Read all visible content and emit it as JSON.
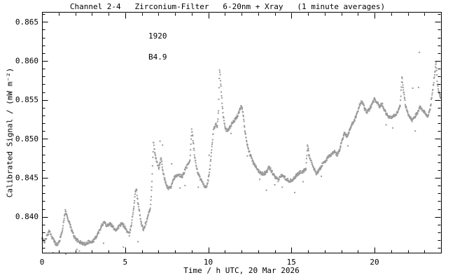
{
  "chart_data": {
    "type": "scatter",
    "title": "Channel 2-4   Zirconium-Filter   6-20nm + Xray   (1 minute averages)",
    "xlabel": "Time / h UTC, 20 Mar 2026",
    "ylabel": "Calibrated Signal / (mW m⁻²)",
    "annotation": {
      "time": "1920",
      "flare_class": "B4.9"
    },
    "xlim": [
      0,
      24
    ],
    "ylim": [
      0.8353,
      0.8662
    ],
    "x_major_ticks": [
      0,
      5,
      10,
      15,
      20
    ],
    "x_tick_labels": [
      "0",
      "5",
      "10",
      "15",
      "20"
    ],
    "x_minor_step_hours": 1,
    "y_major_ticks": [
      0.84,
      0.845,
      0.85,
      0.855,
      0.86,
      0.865
    ],
    "y_tick_labels": [
      "0.840",
      "0.845",
      "0.850",
      "0.855",
      "0.860",
      "0.865"
    ],
    "y_minor_step": 0.001,
    "grid": false,
    "point_color": "#999999",
    "axis_color": "#000000",
    "background_color": "#ffffff",
    "series": [
      {
        "name": "calibrated-signal",
        "cadence_minutes": 1,
        "keypoints": [
          [
            0.0,
            0.8372
          ],
          [
            0.15,
            0.8368
          ],
          [
            0.3,
            0.8375
          ],
          [
            0.45,
            0.8382
          ],
          [
            0.6,
            0.8374
          ],
          [
            0.8,
            0.8366
          ],
          [
            0.95,
            0.8364
          ],
          [
            1.1,
            0.8372
          ],
          [
            1.25,
            0.8386
          ],
          [
            1.4,
            0.8408
          ],
          [
            1.52,
            0.84
          ],
          [
            1.65,
            0.8392
          ],
          [
            1.8,
            0.8382
          ],
          [
            1.95,
            0.8374
          ],
          [
            2.15,
            0.8369
          ],
          [
            2.4,
            0.8366
          ],
          [
            2.6,
            0.8365
          ],
          [
            2.8,
            0.8368
          ],
          [
            3.0,
            0.8367
          ],
          [
            3.2,
            0.8372
          ],
          [
            3.4,
            0.838
          ],
          [
            3.6,
            0.839
          ],
          [
            3.75,
            0.8393
          ],
          [
            3.9,
            0.8389
          ],
          [
            4.1,
            0.8391
          ],
          [
            4.3,
            0.8386
          ],
          [
            4.45,
            0.8383
          ],
          [
            4.6,
            0.8387
          ],
          [
            4.8,
            0.8391
          ],
          [
            4.95,
            0.8388
          ],
          [
            5.1,
            0.8382
          ],
          [
            5.25,
            0.8377
          ],
          [
            5.4,
            0.8393
          ],
          [
            5.52,
            0.8412
          ],
          [
            5.62,
            0.8432
          ],
          [
            5.68,
            0.8437
          ],
          [
            5.75,
            0.8421
          ],
          [
            5.85,
            0.8408
          ],
          [
            5.95,
            0.8394
          ],
          [
            6.1,
            0.8383
          ],
          [
            6.25,
            0.8392
          ],
          [
            6.4,
            0.8402
          ],
          [
            6.52,
            0.8412
          ],
          [
            6.62,
            0.8445
          ],
          [
            6.7,
            0.8496
          ],
          [
            6.78,
            0.8483
          ],
          [
            6.9,
            0.847
          ],
          [
            7.05,
            0.8462
          ],
          [
            7.15,
            0.8476
          ],
          [
            7.3,
            0.8455
          ],
          [
            7.45,
            0.8442
          ],
          [
            7.6,
            0.8436
          ],
          [
            7.75,
            0.8438
          ],
          [
            7.9,
            0.8449
          ],
          [
            8.05,
            0.8452
          ],
          [
            8.25,
            0.8453
          ],
          [
            8.45,
            0.8452
          ],
          [
            8.6,
            0.846
          ],
          [
            8.75,
            0.8466
          ],
          [
            8.9,
            0.8471
          ],
          [
            9.0,
            0.8512
          ],
          [
            9.08,
            0.85
          ],
          [
            9.2,
            0.8474
          ],
          [
            9.35,
            0.8458
          ],
          [
            9.5,
            0.845
          ],
          [
            9.65,
            0.8444
          ],
          [
            9.8,
            0.8438
          ],
          [
            9.95,
            0.8441
          ],
          [
            10.1,
            0.8462
          ],
          [
            10.22,
            0.849
          ],
          [
            10.32,
            0.8512
          ],
          [
            10.45,
            0.8519
          ],
          [
            10.55,
            0.8516
          ],
          [
            10.62,
            0.8538
          ],
          [
            10.68,
            0.859
          ],
          [
            10.75,
            0.8572
          ],
          [
            10.82,
            0.8551
          ],
          [
            10.9,
            0.853
          ],
          [
            11.0,
            0.8515
          ],
          [
            11.1,
            0.8511
          ],
          [
            11.25,
            0.8512
          ],
          [
            11.4,
            0.8519
          ],
          [
            11.6,
            0.8524
          ],
          [
            11.75,
            0.8529
          ],
          [
            11.88,
            0.8536
          ],
          [
            11.97,
            0.8543
          ],
          [
            12.08,
            0.8536
          ],
          [
            12.2,
            0.8512
          ],
          [
            12.32,
            0.8495
          ],
          [
            12.5,
            0.8481
          ],
          [
            12.7,
            0.847
          ],
          [
            12.9,
            0.8462
          ],
          [
            13.1,
            0.8457
          ],
          [
            13.3,
            0.8455
          ],
          [
            13.5,
            0.8457
          ],
          [
            13.65,
            0.8463
          ],
          [
            13.8,
            0.8459
          ],
          [
            14.0,
            0.8451
          ],
          [
            14.2,
            0.8447
          ],
          [
            14.35,
            0.8452
          ],
          [
            14.5,
            0.8454
          ],
          [
            14.7,
            0.8448
          ],
          [
            14.9,
            0.8446
          ],
          [
            15.1,
            0.8448
          ],
          [
            15.3,
            0.8453
          ],
          [
            15.5,
            0.8457
          ],
          [
            15.7,
            0.8458
          ],
          [
            15.88,
            0.8461
          ],
          [
            15.97,
            0.8492
          ],
          [
            16.07,
            0.8479
          ],
          [
            16.2,
            0.8471
          ],
          [
            16.35,
            0.8462
          ],
          [
            16.5,
            0.8456
          ],
          [
            16.65,
            0.8459
          ],
          [
            16.85,
            0.8467
          ],
          [
            17.05,
            0.8472
          ],
          [
            17.25,
            0.8477
          ],
          [
            17.45,
            0.8481
          ],
          [
            17.6,
            0.8484
          ],
          [
            17.75,
            0.8479
          ],
          [
            17.9,
            0.8486
          ],
          [
            18.05,
            0.8498
          ],
          [
            18.2,
            0.8508
          ],
          [
            18.35,
            0.8503
          ],
          [
            18.5,
            0.8511
          ],
          [
            18.65,
            0.8519
          ],
          [
            18.8,
            0.8524
          ],
          [
            18.95,
            0.8532
          ],
          [
            19.1,
            0.8544
          ],
          [
            19.25,
            0.8548
          ],
          [
            19.4,
            0.8539
          ],
          [
            19.55,
            0.8534
          ],
          [
            19.7,
            0.8538
          ],
          [
            19.85,
            0.8545
          ],
          [
            20.0,
            0.8551
          ],
          [
            20.15,
            0.8547
          ],
          [
            20.3,
            0.8541
          ],
          [
            20.45,
            0.8545
          ],
          [
            20.6,
            0.8537
          ],
          [
            20.75,
            0.8531
          ],
          [
            20.95,
            0.8527
          ],
          [
            21.15,
            0.8529
          ],
          [
            21.35,
            0.8533
          ],
          [
            21.55,
            0.8543
          ],
          [
            21.65,
            0.858
          ],
          [
            21.75,
            0.8561
          ],
          [
            21.88,
            0.8541
          ],
          [
            22.05,
            0.8531
          ],
          [
            22.25,
            0.8523
          ],
          [
            22.4,
            0.8527
          ],
          [
            22.55,
            0.8533
          ],
          [
            22.75,
            0.8541
          ],
          [
            22.9,
            0.8537
          ],
          [
            23.05,
            0.8533
          ],
          [
            23.2,
            0.8528
          ],
          [
            23.35,
            0.8539
          ],
          [
            23.5,
            0.8561
          ],
          [
            23.62,
            0.8584
          ],
          [
            23.7,
            0.8597
          ],
          [
            23.78,
            0.8571
          ],
          [
            23.88,
            0.8559
          ],
          [
            24.0,
            0.8552
          ]
        ]
      }
    ],
    "outliers": [
      [
        0.67,
        0.8354
      ],
      [
        1.43,
        0.8352
      ],
      [
        2.1,
        0.8358
      ],
      [
        2.25,
        0.8356
      ],
      [
        3.7,
        0.8366
      ],
      [
        4.9,
        0.8361
      ],
      [
        5.77,
        0.8368
      ],
      [
        7.1,
        0.8497
      ],
      [
        7.25,
        0.8492
      ],
      [
        7.8,
        0.8468
      ],
      [
        8.3,
        0.8437
      ],
      [
        8.6,
        0.844
      ],
      [
        9.4,
        0.8438
      ],
      [
        10.05,
        0.8479
      ],
      [
        11.37,
        0.8507
      ],
      [
        12.35,
        0.8478
      ],
      [
        13.1,
        0.8448
      ],
      [
        13.5,
        0.8434
      ],
      [
        14.0,
        0.8441
      ],
      [
        14.45,
        0.8438
      ],
      [
        15.2,
        0.8431
      ],
      [
        15.7,
        0.8445
      ],
      [
        16.8,
        0.8452
      ],
      [
        18.4,
        0.8491
      ],
      [
        20.7,
        0.8518
      ],
      [
        21.1,
        0.8514
      ],
      [
        22.3,
        0.8565
      ],
      [
        22.45,
        0.851
      ],
      [
        22.65,
        0.8566
      ],
      [
        22.7,
        0.8611
      ]
    ]
  }
}
